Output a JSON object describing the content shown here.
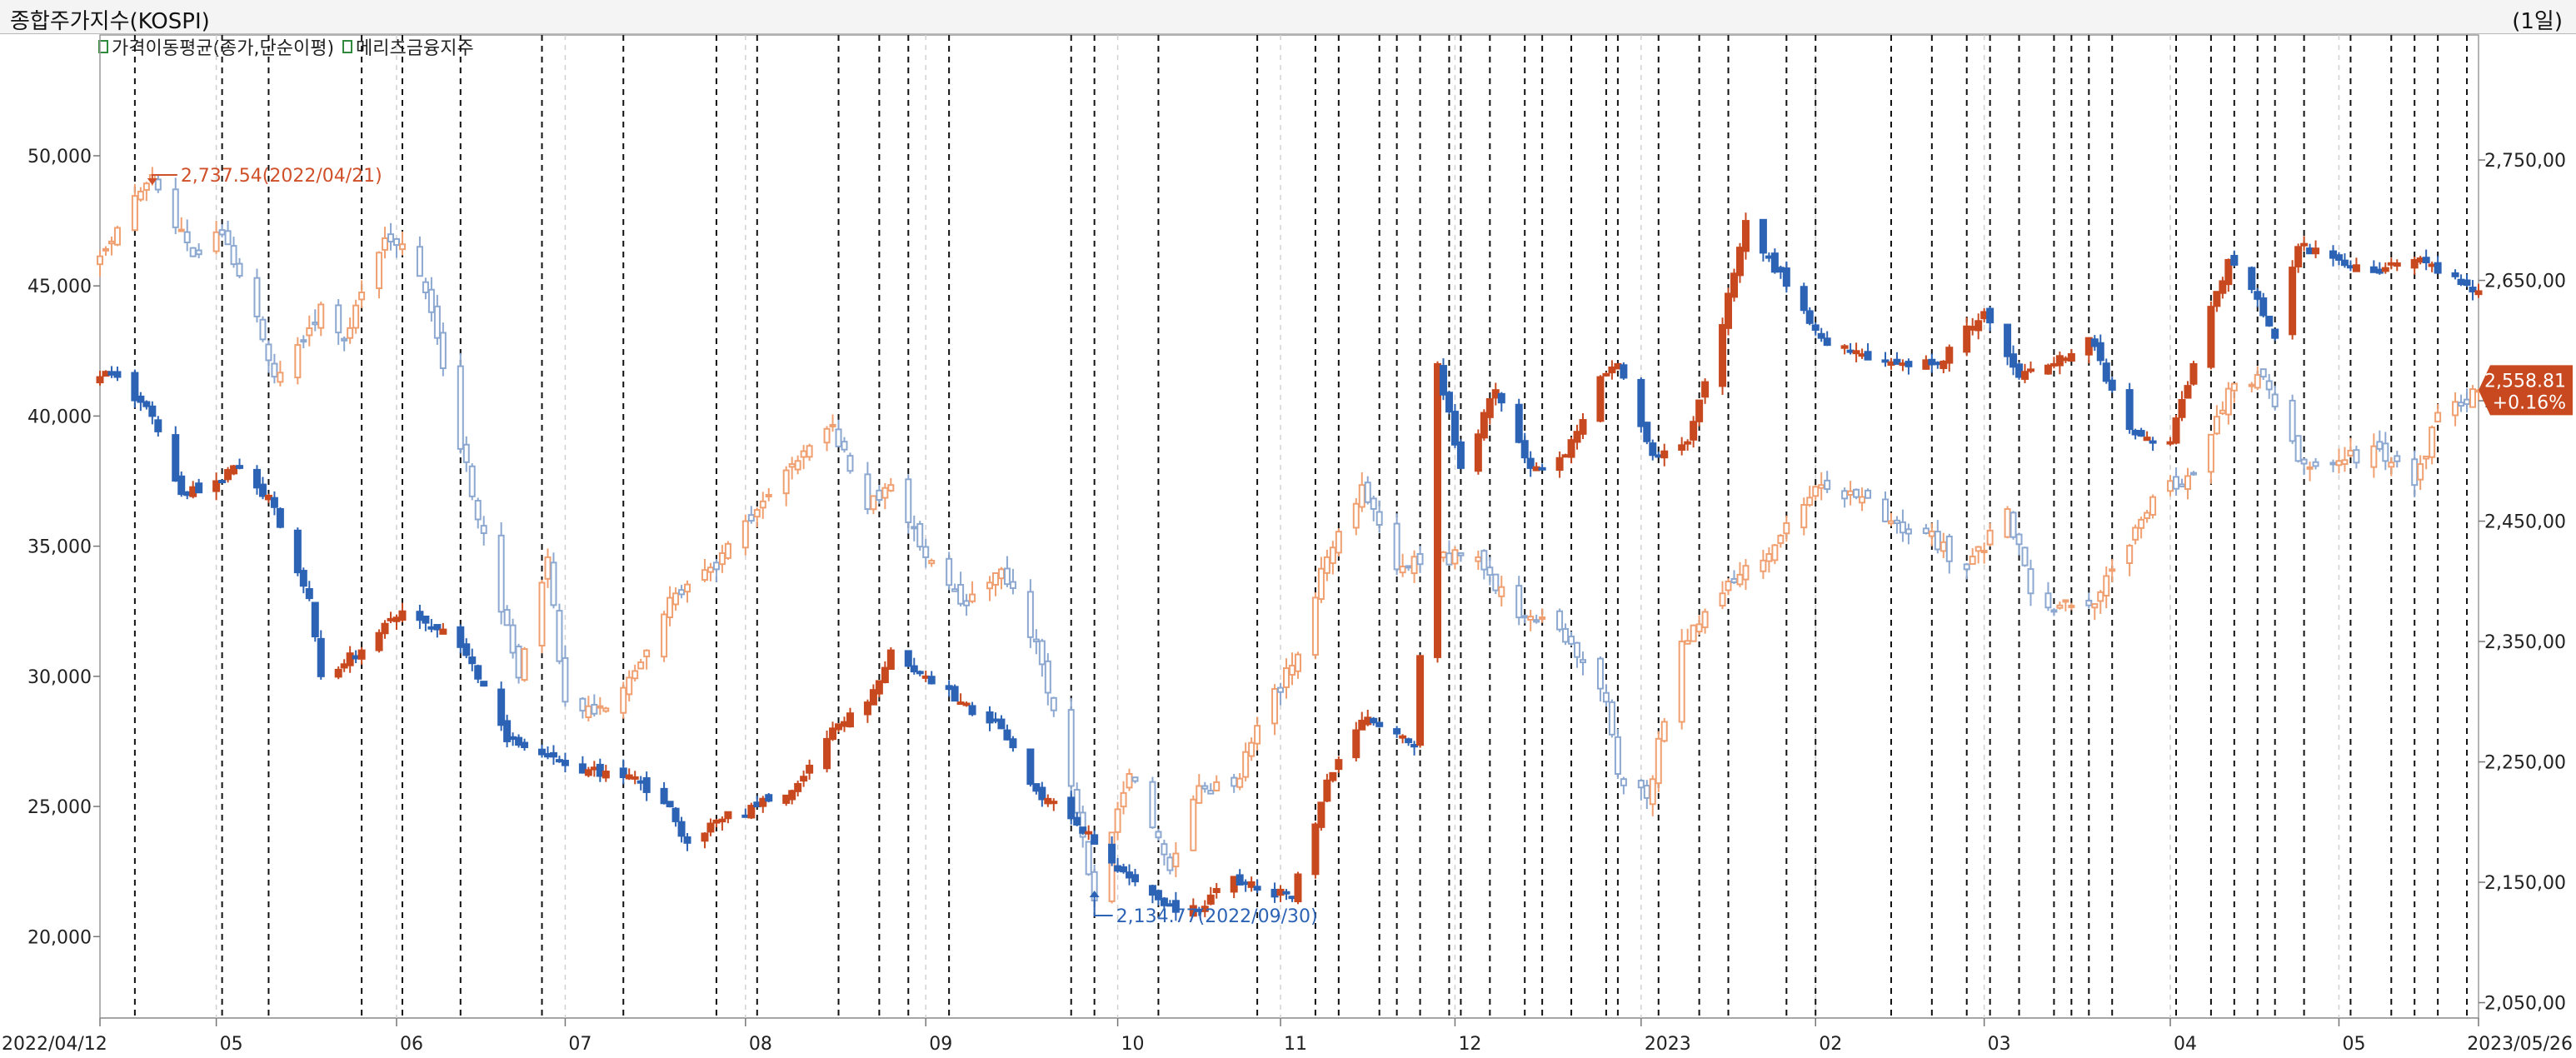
{
  "header": {
    "title": "종합주가지수(KOSPI)",
    "period": "(1일)"
  },
  "legend": [
    {
      "label": "가격이동평균(종가,단순이평)",
      "color": "#2f8a3b"
    },
    {
      "label": "메리츠금융지주",
      "color": "#2f8a3b"
    }
  ],
  "colors": {
    "up": "#c8491f",
    "down": "#2c63b5",
    "overlay_up": "#f0a070",
    "overlay_down": "#8ca8d0",
    "last_badge": "#c8491f"
  },
  "chart_data": {
    "type": "candlestick",
    "title": "종합주가지수(KOSPI)",
    "x_range": [
      "2022/04/12",
      "2023/05/26"
    ],
    "x_ticks": [
      {
        "label": "2022/04/12",
        "date": "2022-04-12"
      },
      {
        "label": "05",
        "date": "2022-05-02"
      },
      {
        "label": "06",
        "date": "2022-06-02"
      },
      {
        "label": "07",
        "date": "2022-07-01"
      },
      {
        "label": "08",
        "date": "2022-08-01"
      },
      {
        "label": "09",
        "date": "2022-09-01"
      },
      {
        "label": "10",
        "date": "2022-10-04"
      },
      {
        "label": "11",
        "date": "2022-11-01"
      },
      {
        "label": "12",
        "date": "2022-12-01"
      },
      {
        "label": "2023",
        "date": "2023-01-02"
      },
      {
        "label": "02",
        "date": "2023-02-01"
      },
      {
        "label": "03",
        "date": "2023-03-02"
      },
      {
        "label": "04",
        "date": "2023-04-03"
      },
      {
        "label": "05",
        "date": "2023-05-02"
      },
      {
        "label": "2023/05/26",
        "date": "2023-05-26"
      }
    ],
    "left_axis": {
      "series": "메리츠금융지주",
      "range": [
        17000,
        54000
      ],
      "ticks": [
        "20,000",
        "25,000",
        "30,000",
        "35,000",
        "40,000",
        "45,000",
        "50,000"
      ],
      "tick_values": [
        20000,
        25000,
        30000,
        35000,
        40000,
        45000,
        50000
      ]
    },
    "right_axis": {
      "series": "종합주가지수(KOSPI)",
      "range": [
        2040,
        2840
      ],
      "ticks": [
        "2,050,00",
        "2,150,00",
        "2,250,00",
        "2,350,00",
        "2,450,00",
        "2,550,00",
        "2,650,00",
        "2,750,00"
      ],
      "tick_values": [
        2050,
        2150,
        2250,
        2350,
        2450,
        2550,
        2650,
        2750
      ]
    },
    "series": [
      {
        "name": "종합주가지수(KOSPI)",
        "axis": "right",
        "style": "candles",
        "anchors": [
          [
            "2022-04-12",
            2670
          ],
          [
            "2022-04-21",
            2737.54
          ],
          [
            "2022-04-28",
            2670
          ],
          [
            "2022-05-02",
            2690
          ],
          [
            "2022-05-04",
            2680
          ],
          [
            "2022-05-09",
            2620
          ],
          [
            "2022-05-12",
            2570
          ],
          [
            "2022-05-17",
            2600
          ],
          [
            "2022-05-20",
            2630
          ],
          [
            "2022-05-24",
            2600
          ],
          [
            "2022-05-27",
            2640
          ],
          [
            "2022-05-31",
            2685
          ],
          [
            "2022-06-03",
            2680
          ],
          [
            "2022-06-07",
            2640
          ],
          [
            "2022-06-13",
            2510
          ],
          [
            "2022-06-17",
            2440
          ],
          [
            "2022-06-23",
            2320
          ],
          [
            "2022-06-28",
            2420
          ],
          [
            "2022-07-01",
            2300
          ],
          [
            "2022-07-06",
            2290
          ],
          [
            "2022-07-12",
            2320
          ],
          [
            "2022-07-20",
            2390
          ],
          [
            "2022-07-27",
            2410
          ],
          [
            "2022-08-01",
            2450
          ],
          [
            "2022-08-10",
            2500
          ],
          [
            "2022-08-16",
            2530
          ],
          [
            "2022-08-22",
            2460
          ],
          [
            "2022-08-26",
            2480
          ],
          [
            "2022-09-01",
            2420
          ],
          [
            "2022-09-08",
            2380
          ],
          [
            "2022-09-14",
            2410
          ],
          [
            "2022-09-20",
            2350
          ],
          [
            "2022-09-26",
            2230
          ],
          [
            "2022-09-30",
            2134.77
          ],
          [
            "2022-10-06",
            2240
          ],
          [
            "2022-10-13",
            2160
          ],
          [
            "2022-10-18",
            2230
          ],
          [
            "2022-10-24",
            2230
          ],
          [
            "2022-10-28",
            2280
          ],
          [
            "2022-11-03",
            2330
          ],
          [
            "2022-11-09",
            2420
          ],
          [
            "2022-11-15",
            2480
          ],
          [
            "2022-11-21",
            2410
          ],
          [
            "2022-11-28",
            2420
          ],
          [
            "2022-12-05",
            2420
          ],
          [
            "2022-12-12",
            2370
          ],
          [
            "2022-12-19",
            2360
          ],
          [
            "2022-12-27",
            2300
          ],
          [
            "2022-12-29",
            2240
          ],
          [
            "2023-01-03",
            2220
          ],
          [
            "2023-01-09",
            2350
          ],
          [
            "2023-01-16",
            2390
          ],
          [
            "2023-01-25",
            2430
          ],
          [
            "2023-02-02",
            2480
          ],
          [
            "2023-02-08",
            2470
          ],
          [
            "2023-02-14",
            2450
          ],
          [
            "2023-02-20",
            2440
          ],
          [
            "2023-02-27",
            2410
          ],
          [
            "2023-03-06",
            2460
          ],
          [
            "2023-03-10",
            2390
          ],
          [
            "2023-03-15",
            2380
          ],
          [
            "2023-03-20",
            2380
          ],
          [
            "2023-03-24",
            2410
          ],
          [
            "2023-03-31",
            2470
          ],
          [
            "2023-04-07",
            2490
          ],
          [
            "2023-04-13",
            2560
          ],
          [
            "2023-04-19",
            2570
          ],
          [
            "2023-04-25",
            2500
          ],
          [
            "2023-05-02",
            2500
          ],
          [
            "2023-05-09",
            2510
          ],
          [
            "2023-05-15",
            2480
          ],
          [
            "2023-05-19",
            2540
          ],
          [
            "2023-05-26",
            2558.81
          ]
        ]
      },
      {
        "name": "메리츠금융지주",
        "axis": "left",
        "style": "candles-filled",
        "anchors": [
          [
            "2022-04-12",
            41500
          ],
          [
            "2022-04-15",
            41500
          ],
          [
            "2022-04-21",
            40000
          ],
          [
            "2022-04-26",
            37000
          ],
          [
            "2022-05-02",
            37500
          ],
          [
            "2022-05-06",
            38000
          ],
          [
            "2022-05-12",
            36500
          ],
          [
            "2022-05-18",
            33000
          ],
          [
            "2022-05-20",
            30000
          ],
          [
            "2022-05-27",
            31000
          ],
          [
            "2022-06-03",
            32500
          ],
          [
            "2022-06-10",
            31800
          ],
          [
            "2022-06-15",
            30500
          ],
          [
            "2022-06-21",
            27500
          ],
          [
            "2022-06-27",
            27000
          ],
          [
            "2022-07-05",
            26400
          ],
          [
            "2022-07-12",
            26200
          ],
          [
            "2022-07-19",
            25000
          ],
          [
            "2022-07-22",
            23600
          ],
          [
            "2022-07-28",
            24500
          ],
          [
            "2022-08-03",
            25000
          ],
          [
            "2022-08-09",
            25600
          ],
          [
            "2022-08-16",
            28000
          ],
          [
            "2022-08-22",
            29000
          ],
          [
            "2022-08-26",
            31000
          ],
          [
            "2022-09-01",
            30000
          ],
          [
            "2022-09-07",
            29000
          ],
          [
            "2022-09-14",
            28000
          ],
          [
            "2022-09-20",
            25600
          ],
          [
            "2022-09-27",
            24300
          ],
          [
            "2022-10-05",
            22500
          ],
          [
            "2022-10-12",
            21200
          ],
          [
            "2022-10-18",
            21000
          ],
          [
            "2022-10-24",
            22300
          ],
          [
            "2022-10-28",
            21800
          ],
          [
            "2022-11-03",
            21500
          ],
          [
            "2022-11-09",
            26000
          ],
          [
            "2022-11-15",
            28300
          ],
          [
            "2022-11-21",
            27800
          ],
          [
            "2022-11-24",
            27300
          ],
          [
            "2022-11-28",
            42000
          ],
          [
            "2022-12-02",
            38000
          ],
          [
            "2022-12-08",
            41000
          ],
          [
            "2022-12-14",
            38000
          ],
          [
            "2022-12-20",
            38500
          ],
          [
            "2022-12-26",
            41500
          ],
          [
            "2022-12-29",
            42000
          ],
          [
            "2023-01-04",
            38500
          ],
          [
            "2023-01-10",
            39000
          ],
          [
            "2023-01-16",
            43500
          ],
          [
            "2023-01-20",
            47500
          ],
          [
            "2023-01-27",
            45000
          ],
          [
            "2023-02-02",
            43000
          ],
          [
            "2023-02-08",
            42500
          ],
          [
            "2023-02-15",
            42000
          ],
          [
            "2023-02-22",
            42000
          ],
          [
            "2023-03-02",
            44000
          ],
          [
            "2023-03-08",
            41500
          ],
          [
            "2023-03-14",
            42000
          ],
          [
            "2023-03-20",
            43000
          ],
          [
            "2023-03-27",
            39500
          ],
          [
            "2023-04-03",
            39000
          ],
          [
            "2023-04-07",
            42000
          ],
          [
            "2023-04-13",
            46000
          ],
          [
            "2023-04-18",
            44500
          ],
          [
            "2023-04-21",
            43000
          ],
          [
            "2023-04-25",
            46500
          ],
          [
            "2023-05-02",
            46000
          ],
          [
            "2023-05-09",
            45500
          ],
          [
            "2023-05-15",
            46000
          ],
          [
            "2023-05-19",
            45500
          ],
          [
            "2023-05-26",
            44800
          ]
        ]
      }
    ],
    "annotations": [
      {
        "text": "2,737.54(2022/04/21)",
        "series": "종합주가지수(KOSPI)",
        "type": "high",
        "date": "2022-04-21",
        "value": 2737.54
      },
      {
        "text": "2,134.77(2022/09/30)",
        "series": "종합주가지수(KOSPI)",
        "type": "low",
        "date": "2022-09-30",
        "value": 2134.77
      }
    ],
    "last_value": {
      "series": "종합주가지수(KOSPI)",
      "value_label": "2,558.81",
      "change_label": "+0.16%",
      "value": 2558.81
    },
    "vertical_event_lines": [
      "2022-04-18",
      "2022-05-03",
      "2022-05-11",
      "2022-05-27",
      "2022-06-03",
      "2022-06-13",
      "2022-06-27",
      "2022-07-11",
      "2022-07-27",
      "2022-08-03",
      "2022-08-17",
      "2022-08-24",
      "2022-08-29",
      "2022-09-05",
      "2022-09-26",
      "2022-09-30",
      "2022-10-11",
      "2022-10-28",
      "2022-11-07",
      "2022-11-11",
      "2022-11-18",
      "2022-11-21",
      "2022-11-25",
      "2022-11-30",
      "2022-12-02",
      "2022-12-07",
      "2022-12-13",
      "2022-12-16",
      "2022-12-21",
      "2022-12-27",
      "2022-12-29",
      "2023-01-05",
      "2023-01-12",
      "2023-01-17",
      "2023-01-27",
      "2023-02-01",
      "2023-02-14",
      "2023-02-21",
      "2023-02-27",
      "2023-03-03",
      "2023-03-08",
      "2023-03-14",
      "2023-03-17",
      "2023-03-20",
      "2023-03-24",
      "2023-04-04",
      "2023-04-10",
      "2023-04-14",
      "2023-04-18",
      "2023-04-21",
      "2023-04-26",
      "2023-05-04",
      "2023-05-11",
      "2023-05-15",
      "2023-05-19",
      "2023-05-24"
    ],
    "grid": true
  }
}
